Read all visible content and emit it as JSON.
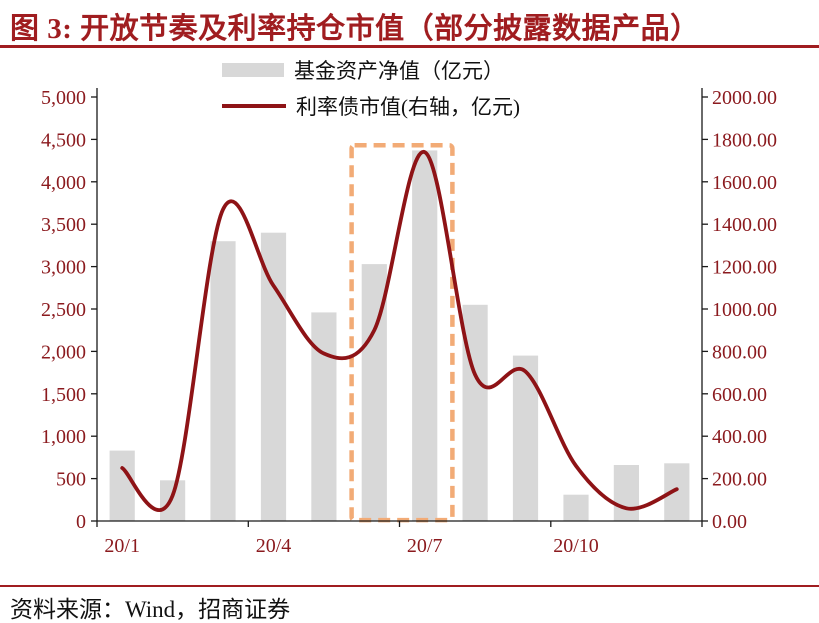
{
  "header": {
    "title": "图 3:  开放节奏及利率持仓市值（部分披露数据产品）"
  },
  "footer": {
    "source": "资料来源：Wind，招商证券"
  },
  "colors": {
    "title_red": "#a01d20",
    "rule_red": "#a01d20",
    "line_red": "#8e1316",
    "bar_gray": "#d8d8d8",
    "axis_label_red": "#8b1a1e",
    "highlight_orange": "#f2ab76",
    "axis_line": "#1a1a1a",
    "legend_text": "#111111",
    "footer_text": "#111111"
  },
  "chart_data": {
    "type": "bar",
    "title": "开放节奏及利率持仓市值（部分披露数据产品）",
    "categories": [
      "20/1",
      "20/2",
      "20/3",
      "20/4",
      "20/5",
      "20/6",
      "20/7",
      "20/8",
      "20/9",
      "20/10",
      "20/11",
      "20/12"
    ],
    "x_axis_tick_labels": [
      "20/1",
      "20/4",
      "20/7",
      "20/10"
    ],
    "series": [
      {
        "name": "基金资产净值（亿元）",
        "type": "bar",
        "axis": "left",
        "values": [
          830,
          480,
          3300,
          3400,
          2460,
          3030,
          4370,
          2550,
          1950,
          310,
          660,
          680
        ]
      },
      {
        "name": "利率债市值(右轴，亿元)",
        "type": "line",
        "axis": "right",
        "values": [
          250,
          120,
          1470,
          1110,
          790,
          900,
          1740,
          690,
          705,
          260,
          60,
          150
        ]
      }
    ],
    "left_axis": {
      "min": 0,
      "max": 5000,
      "step": 500,
      "tick_labels": [
        "5,000",
        "4,500",
        "4,000",
        "3,500",
        "3,000",
        "2,500",
        "2,000",
        "1,500",
        "1,000",
        "500",
        "0"
      ]
    },
    "right_axis": {
      "min": 0,
      "max": 2000,
      "step": 200,
      "tick_labels": [
        "2000.00",
        "1800.00",
        "1600.00",
        "1400.00",
        "1200.00",
        "1000.00",
        "800.00",
        "600.00",
        "400.00",
        "200.00",
        "0.00"
      ]
    },
    "highlight_box": {
      "from_category": "20/6",
      "to_category": "20/7",
      "top_value_left_axis": 4430,
      "bottom_value_left_axis": 10
    },
    "grid": "off",
    "legend_position": "top"
  }
}
